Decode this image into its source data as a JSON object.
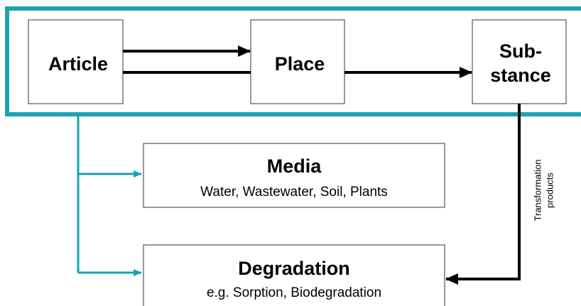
{
  "nodes": [
    {
      "id": "article",
      "lines": [
        "Article"
      ]
    },
    {
      "id": "place",
      "lines": [
        "Place"
      ]
    },
    {
      "id": "substance",
      "lines": [
        "Sub-",
        "stance"
      ]
    },
    {
      "id": "media",
      "lines": [
        "Media"
      ],
      "subtitle": "Water, Wastewater, Soil, Plants"
    },
    {
      "id": "degradation",
      "lines": [
        "Degradation"
      ],
      "subtitle": "e.g. Sorption, Biodegradation"
    }
  ],
  "edge_label": {
    "lines": [
      "Transformation",
      "products"
    ]
  }
}
